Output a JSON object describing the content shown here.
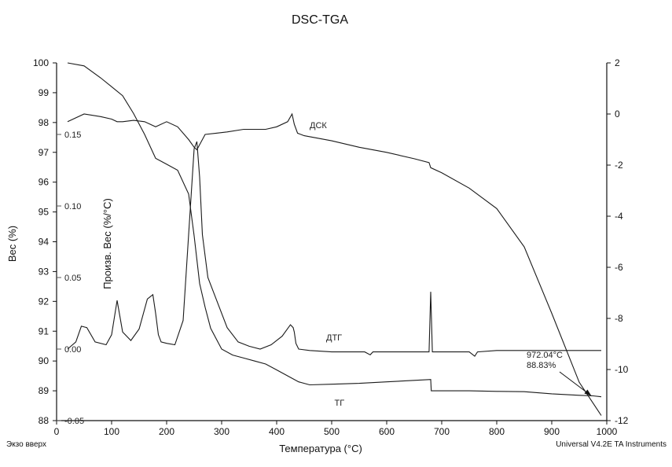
{
  "chart_data": {
    "type": "line",
    "title": "DSC-TGA",
    "xlabel": "Температура (°C)",
    "ylabel_left": "Вес (%)",
    "ylabel_inner": "Произв. Вес (%/°C)",
    "xlim": [
      0,
      1000
    ],
    "ylim_left": [
      88,
      100
    ],
    "ylim_right": [
      -12,
      2
    ],
    "ylim_inner": [
      -0.05,
      0.2
    ],
    "x_ticks": [
      0,
      100,
      200,
      300,
      400,
      500,
      600,
      700,
      800,
      900,
      1000
    ],
    "y_left_ticks": [
      88,
      89,
      90,
      91,
      92,
      93,
      94,
      95,
      96,
      97,
      98,
      99,
      100
    ],
    "y_right_ticks": [
      2,
      0,
      -2,
      -4,
      -6,
      -8,
      -10,
      -12
    ],
    "y_inner_ticks": [
      "0.15",
      "0.10",
      "0.05",
      "0.00",
      "-0.05"
    ],
    "y_inner_tick_values": [
      0.15,
      0.1,
      0.05,
      0.0,
      -0.05
    ],
    "series": [
      {
        "name": "ТГ",
        "axis": "left",
        "x": [
          20,
          50,
          80,
          100,
          120,
          140,
          160,
          180,
          200,
          220,
          240,
          250,
          260,
          270,
          280,
          300,
          320,
          340,
          360,
          380,
          400,
          420,
          440,
          460,
          500,
          550,
          600,
          650,
          680,
          681,
          700,
          750,
          800,
          850,
          900,
          950,
          975,
          990
        ],
        "y": [
          100.0,
          99.9,
          99.5,
          99.2,
          98.9,
          98.3,
          97.6,
          96.8,
          96.6,
          96.4,
          95.6,
          94.2,
          92.6,
          91.8,
          91.1,
          90.4,
          90.2,
          90.1,
          90.0,
          89.9,
          89.7,
          89.5,
          89.3,
          89.2,
          89.22,
          89.25,
          89.3,
          89.35,
          89.38,
          89.0,
          89.0,
          89.0,
          88.98,
          88.97,
          88.9,
          88.85,
          88.83,
          88.8
        ]
      },
      {
        "name": "ДТГ",
        "axis": "inner",
        "x": [
          20,
          35,
          45,
          55,
          70,
          90,
          100,
          110,
          120,
          135,
          150,
          165,
          175,
          180,
          185,
          190,
          200,
          215,
          230,
          240,
          250,
          255,
          260,
          265,
          275,
          290,
          310,
          330,
          350,
          370,
          390,
          410,
          425,
          430,
          432,
          435,
          440,
          460,
          500,
          560,
          570,
          575,
          600,
          650,
          677,
          680,
          683,
          700,
          750,
          760,
          765,
          800,
          900,
          990
        ],
        "y": [
          0.0,
          0.005,
          0.016,
          0.015,
          0.005,
          0.003,
          0.01,
          0.034,
          0.012,
          0.006,
          0.014,
          0.035,
          0.038,
          0.025,
          0.01,
          0.005,
          0.004,
          0.003,
          0.02,
          0.08,
          0.14,
          0.145,
          0.12,
          0.08,
          0.05,
          0.035,
          0.015,
          0.005,
          0.002,
          0.0,
          0.003,
          0.009,
          0.017,
          0.015,
          0.012,
          0.004,
          0.0,
          -0.001,
          -0.002,
          -0.002,
          -0.004,
          -0.002,
          -0.002,
          -0.002,
          -0.002,
          0.04,
          -0.002,
          -0.002,
          -0.002,
          -0.005,
          -0.002,
          -0.001,
          -0.001,
          -0.001
        ]
      },
      {
        "name": "ДСК",
        "axis": "right",
        "x": [
          20,
          50,
          80,
          100,
          110,
          120,
          140,
          160,
          180,
          200,
          220,
          240,
          250,
          255,
          260,
          270,
          290,
          310,
          340,
          380,
          400,
          420,
          428,
          432,
          438,
          450,
          500,
          550,
          600,
          650,
          677,
          680,
          700,
          750,
          800,
          850,
          900,
          950,
          990
        ],
        "y": [
          -0.3,
          0.0,
          -0.1,
          -0.2,
          -0.3,
          -0.3,
          -0.25,
          -0.3,
          -0.5,
          -0.3,
          -0.5,
          -1.0,
          -1.3,
          -1.4,
          -1.2,
          -0.8,
          -0.75,
          -0.7,
          -0.6,
          -0.6,
          -0.5,
          -0.3,
          0.0,
          -0.4,
          -0.75,
          -0.85,
          -1.05,
          -1.3,
          -1.5,
          -1.75,
          -1.9,
          -2.1,
          -2.3,
          -2.9,
          -3.7,
          -5.2,
          -7.8,
          -10.5,
          -11.8
        ]
      }
    ],
    "annotations": [
      {
        "text": "972.04°C",
        "x": 972.04
      },
      {
        "text": "88.83%",
        "y": 88.83
      }
    ],
    "grid": false
  },
  "footer": {
    "left": "Экзо вверх",
    "right": "Universal V4.2E TA Instruments"
  }
}
